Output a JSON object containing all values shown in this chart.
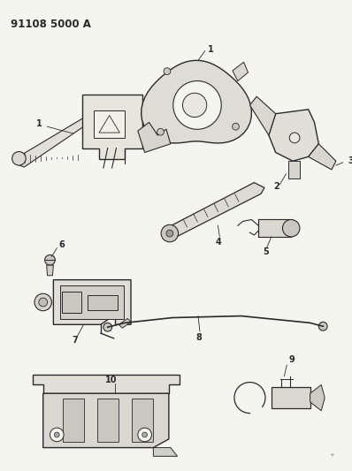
{
  "title": "91108 5000 A",
  "bg_color": "#f5f5f0",
  "line_color": "#2a2a2a",
  "fill_light": "#e8e8e0",
  "fill_mid": "#d0d0c8",
  "figsize": [
    3.98,
    5.33
  ],
  "dpi": 100
}
